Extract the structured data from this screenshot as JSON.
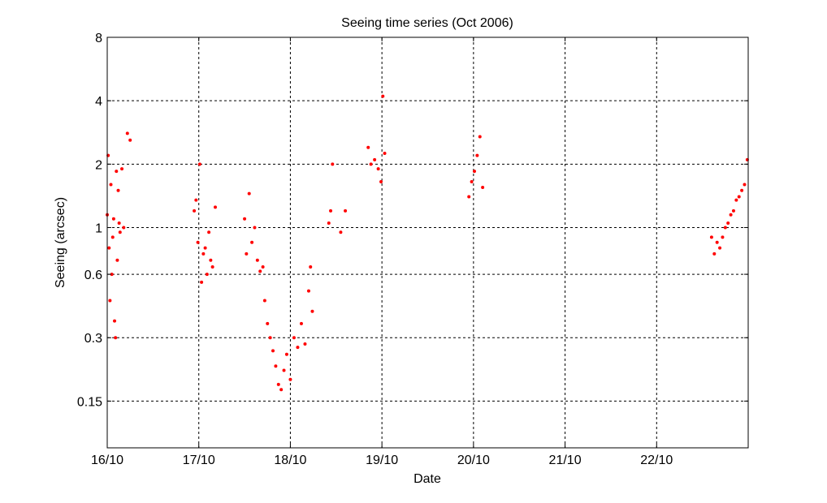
{
  "chart_data": {
    "type": "scatter",
    "title": "Seeing time series (Oct 2006)",
    "xlabel": "Date",
    "ylabel": "Seeing (arcsec)",
    "x_unit": "days (October 2006)",
    "xlim": [
      16,
      23
    ],
    "ylim": [
      0.09,
      8
    ],
    "yscale": "log",
    "grid": true,
    "marker_color": "#ff0000",
    "x_ticks": [
      {
        "value": 16,
        "label": "16/10"
      },
      {
        "value": 17,
        "label": "17/10"
      },
      {
        "value": 18,
        "label": "18/10"
      },
      {
        "value": 19,
        "label": "19/10"
      },
      {
        "value": 20,
        "label": "20/10"
      },
      {
        "value": 21,
        "label": "21/10"
      },
      {
        "value": 22,
        "label": "22/10"
      }
    ],
    "y_ticks": [
      {
        "value": 0.15,
        "label": "0.15"
      },
      {
        "value": 0.3,
        "label": "0.3"
      },
      {
        "value": 0.6,
        "label": "0.6"
      },
      {
        "value": 1,
        "label": "1"
      },
      {
        "value": 2,
        "label": "2"
      },
      {
        "value": 4,
        "label": "4"
      },
      {
        "value": 8,
        "label": "8"
      }
    ],
    "x": [
      16.0,
      16.01,
      16.02,
      16.03,
      16.04,
      16.05,
      16.06,
      16.07,
      16.08,
      16.09,
      16.1,
      16.11,
      16.12,
      16.13,
      16.14,
      16.16,
      16.18,
      16.22,
      16.25,
      16.95,
      16.97,
      16.99,
      17.01,
      17.03,
      17.05,
      17.07,
      17.09,
      17.11,
      17.13,
      17.15,
      17.18,
      17.5,
      17.52,
      17.55,
      17.58,
      17.61,
      17.64,
      17.67,
      17.7,
      17.72,
      17.75,
      17.78,
      17.81,
      17.84,
      17.87,
      17.9,
      17.93,
      17.96,
      18.0,
      18.04,
      18.08,
      18.12,
      18.16,
      18.2,
      18.22,
      18.24,
      18.42,
      18.44,
      18.46,
      18.55,
      18.6,
      18.85,
      18.88,
      18.92,
      18.96,
      18.99,
      19.01,
      19.03,
      19.95,
      19.98,
      20.01,
      20.04,
      20.07,
      20.1,
      22.6,
      22.63,
      22.66,
      22.69,
      22.72,
      22.75,
      22.78,
      22.81,
      22.84,
      22.87,
      22.9,
      22.93,
      22.96,
      22.99
    ],
    "y": [
      1.15,
      2.2,
      0.8,
      0.45,
      1.6,
      0.6,
      0.9,
      1.1,
      0.36,
      0.3,
      1.85,
      0.7,
      1.5,
      1.05,
      0.95,
      1.9,
      1.0,
      2.8,
      2.6,
      1.2,
      1.35,
      0.85,
      2.0,
      0.55,
      0.75,
      0.8,
      0.6,
      0.95,
      0.7,
      0.65,
      1.25,
      1.1,
      0.75,
      1.45,
      0.85,
      1.0,
      0.7,
      0.62,
      0.65,
      0.45,
      0.35,
      0.3,
      0.26,
      0.22,
      0.18,
      0.17,
      0.21,
      0.25,
      0.19,
      0.3,
      0.27,
      0.35,
      0.28,
      0.5,
      0.65,
      0.4,
      1.05,
      1.2,
      2.0,
      0.95,
      1.2,
      2.4,
      2.0,
      2.1,
      1.9,
      1.65,
      4.2,
      2.25,
      1.4,
      1.65,
      1.85,
      2.2,
      2.7,
      1.55,
      0.9,
      0.75,
      0.85,
      0.8,
      0.9,
      1.0,
      1.05,
      1.15,
      1.2,
      1.35,
      1.4,
      1.5,
      1.6,
      2.1
    ]
  }
}
